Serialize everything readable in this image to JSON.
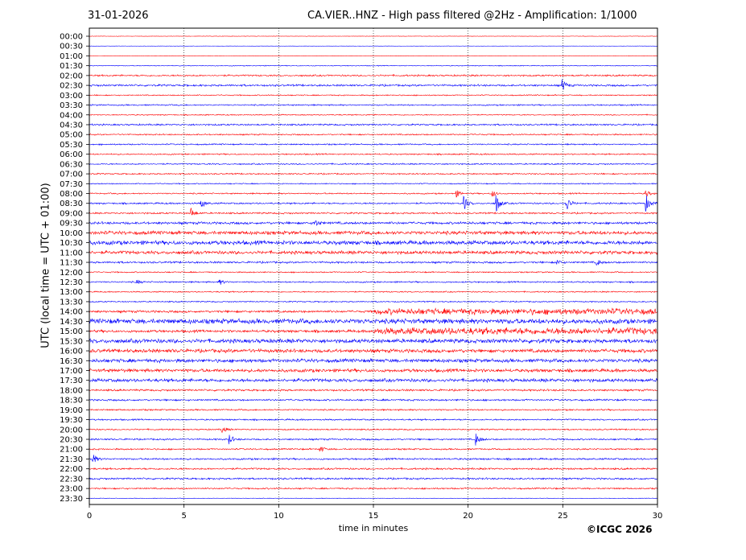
{
  "header": {
    "date": "31-01-2026",
    "title": "CA.VIER..HNZ - High pass filtered @2Hz - Amplification: 1/1000"
  },
  "footer": {
    "copyright": "©ICGC 2026"
  },
  "colors": {
    "trace_a": "#ff0000",
    "trace_b": "#0000ff",
    "grid": "#000000",
    "axes": "#000000"
  },
  "chart_data": {
    "type": "line",
    "xlabel": "time in minutes",
    "ylabel": "UTC (local time = UTC + 01:00)",
    "xlim": [
      0,
      30
    ],
    "x_ticks": [
      0,
      5,
      10,
      15,
      20,
      25,
      30
    ],
    "grid": "vertical dotted at x ticks",
    "rows": [
      "00:00",
      "00:30",
      "01:00",
      "01:30",
      "02:00",
      "02:30",
      "03:00",
      "03:30",
      "04:00",
      "04:30",
      "05:00",
      "05:30",
      "06:00",
      "06:30",
      "07:00",
      "07:30",
      "08:00",
      "08:30",
      "09:00",
      "09:30",
      "10:00",
      "10:30",
      "11:00",
      "11:30",
      "12:00",
      "12:30",
      "13:00",
      "13:30",
      "14:00",
      "14:30",
      "15:00",
      "15:30",
      "16:00",
      "16:30",
      "17:00",
      "17:30",
      "18:00",
      "18:30",
      "19:00",
      "19:30",
      "20:00",
      "20:30",
      "21:00",
      "21:30",
      "22:00",
      "22:30",
      "23:00",
      "23:30"
    ],
    "row_colors": "alternating red (even rows) / blue (odd rows)",
    "noise_level": [
      0.3,
      0.2,
      0.3,
      0.6,
      1.2,
      1.4,
      0.8,
      1.0,
      0.8,
      1.2,
      1.0,
      1.0,
      1.0,
      1.0,
      1.0,
      0.8,
      1.0,
      1.2,
      1.2,
      1.8,
      2.6,
      3.0,
      2.4,
      1.4,
      0.9,
      1.1,
      0.9,
      0.9,
      2.8,
      3.6,
      3.2,
      3.0,
      2.6,
      2.6,
      2.4,
      2.4,
      1.4,
      1.3,
      1.1,
      1.1,
      1.0,
      1.2,
      1.1,
      1.3,
      1.3,
      1.3,
      1.1,
      0.4
    ],
    "events": [
      {
        "row": "02:30",
        "minute": 25.0,
        "amplitude": 7
      },
      {
        "row": "08:00",
        "minute": 19.4,
        "amplitude": 4
      },
      {
        "row": "08:00",
        "minute": 21.3,
        "amplitude": 4
      },
      {
        "row": "08:00",
        "minute": 29.4,
        "amplitude": 4
      },
      {
        "row": "08:30",
        "minute": 5.9,
        "amplitude": 6
      },
      {
        "row": "08:30",
        "minute": 19.8,
        "amplitude": 8
      },
      {
        "row": "08:30",
        "minute": 21.5,
        "amplitude": 11
      },
      {
        "row": "08:30",
        "minute": 25.2,
        "amplitude": 9
      },
      {
        "row": "08:30",
        "minute": 29.4,
        "amplitude": 10
      },
      {
        "row": "09:00",
        "minute": 5.4,
        "amplitude": 6
      },
      {
        "row": "09:30",
        "minute": 11.9,
        "amplitude": 5
      },
      {
        "row": "11:30",
        "minute": 24.7,
        "amplitude": 3
      },
      {
        "row": "11:30",
        "minute": 26.8,
        "amplitude": 4
      },
      {
        "row": "12:30",
        "minute": 2.5,
        "amplitude": 3
      },
      {
        "row": "12:30",
        "minute": 6.9,
        "amplitude": 3
      },
      {
        "row": "20:00",
        "minute": 7.0,
        "amplitude": 5
      },
      {
        "row": "20:30",
        "minute": 7.4,
        "amplitude": 6
      },
      {
        "row": "20:30",
        "minute": 20.4,
        "amplitude": 8
      },
      {
        "row": "21:00",
        "minute": 12.2,
        "amplitude": 4
      },
      {
        "row": "21:30",
        "minute": 0.2,
        "amplitude": 6
      }
    ]
  }
}
